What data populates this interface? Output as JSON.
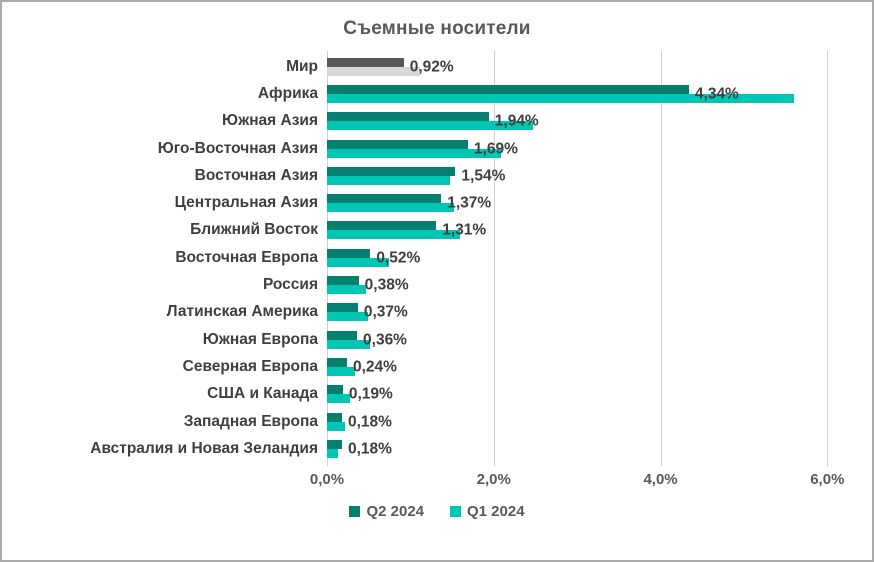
{
  "title": "Съемные носители",
  "colors": {
    "q2_bar": "#067f6f",
    "q1_bar": "#00c7b4",
    "q2_world_bar": "#595959",
    "q1_world_bar": "#d9d9d9",
    "gridline": "#d0d0d0",
    "category_text": "#3f3f3f",
    "value_text": "#3f3f3f",
    "axis_text": "#595959",
    "title_text": "#595959",
    "frame_border": "#ababab"
  },
  "chart_data": {
    "type": "bar",
    "orientation": "horizontal",
    "title": "Съемные носители",
    "categories": [
      "Мир",
      "Африка",
      "Южная Азия",
      "Юго-Восточная Азия",
      "Восточная Азия",
      "Центральная Азия",
      "Ближний Восток",
      "Восточная Европа",
      "Россия",
      "Латинская Америка",
      "Южная Европа",
      "Северная Европа",
      "США и Канада",
      "Западная Европа",
      "Австралия и Новая Зеландия"
    ],
    "series": [
      {
        "name": "Q2 2024",
        "values": [
          0.92,
          4.34,
          1.94,
          1.69,
          1.54,
          1.37,
          1.31,
          0.52,
          0.38,
          0.37,
          0.36,
          0.24,
          0.19,
          0.18,
          0.18
        ],
        "data_labels": [
          "0,92%",
          "4,34%",
          "1,94%",
          "1,69%",
          "1,54%",
          "1,37%",
          "1,31%",
          "0,52%",
          "0,38%",
          "0,37%",
          "0,36%",
          "0,24%",
          "0,19%",
          "0,18%",
          "0,18%"
        ]
      },
      {
        "name": "Q1 2024",
        "values": [
          1.12,
          5.6,
          2.47,
          2.09,
          1.47,
          1.52,
          1.6,
          0.74,
          0.47,
          0.49,
          0.51,
          0.34,
          0.27,
          0.22,
          0.13
        ],
        "data_labels": []
      }
    ],
    "x_ticks": [
      "0,0%",
      "2,0%",
      "4,0%",
      "6,0%"
    ],
    "x_tick_values": [
      0,
      2,
      4,
      6
    ],
    "x_max": 6.2,
    "grid": "vertical",
    "legend": [
      "Q2 2024",
      "Q1 2024"
    ],
    "legend_position": "bottom",
    "notes": "Category 'Мир' (world) is drawn in gray instead of teal; Q1 2024 values are unlabeled and estimated from bar lengths"
  }
}
